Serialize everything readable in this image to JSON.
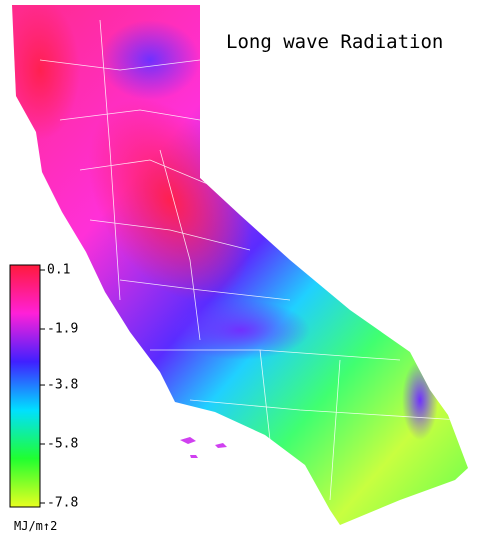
{
  "title": "Long wave Radiation",
  "colorbar": {
    "range": [
      -7.8,
      0.1
    ],
    "ticks": [
      0.1,
      -1.9,
      -3.8,
      -5.8,
      -7.8
    ],
    "unit": "MJ/m↑2",
    "colors": [
      "#ff1a3c",
      "#ff20d8",
      "#4020ff",
      "#00e0ff",
      "#20ff30",
      "#e8ff20"
    ]
  }
}
